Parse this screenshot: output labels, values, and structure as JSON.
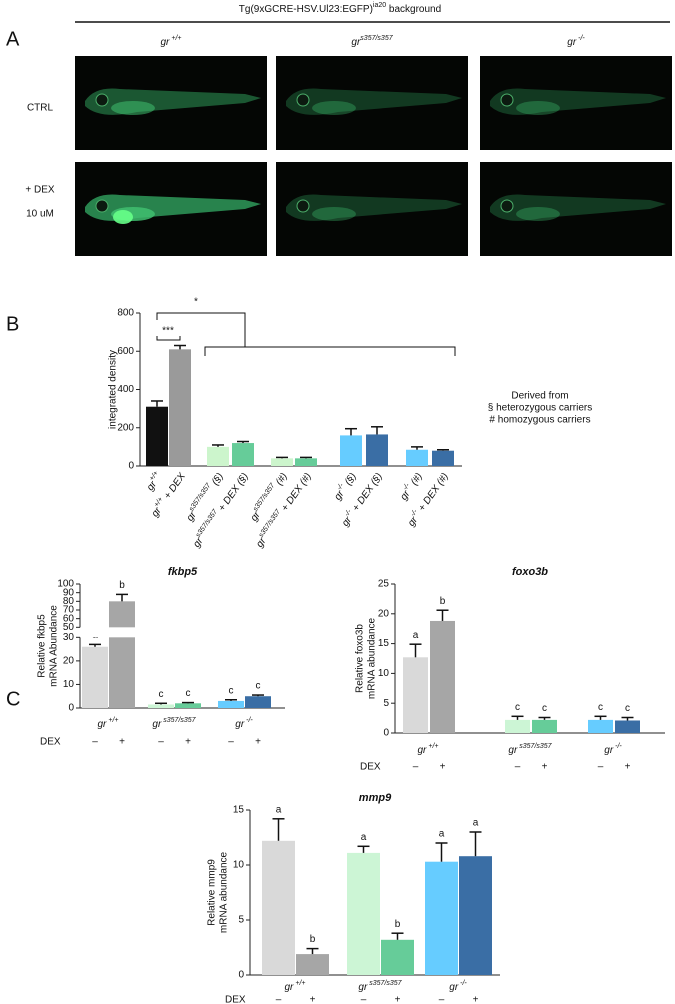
{
  "header": {
    "title": {
      "text": "Tg(9xGCRE-HSV.Ul23:EGFP)",
      "sup": "ia20",
      "rest": " background"
    }
  },
  "panel_a": {
    "letter": "A",
    "columns": [
      {
        "text": "gr",
        "sup": " +/+"
      },
      {
        "text": "gr",
        "sup": "s357/s357"
      },
      {
        "text": "gr",
        "sup": " -/-"
      }
    ],
    "rows": [
      "CTRL",
      "+ DEX",
      "10 uM"
    ]
  },
  "chart_data": [
    {
      "type": "bar",
      "panel": "B",
      "ylabel": "integrated density",
      "categories": [
        {
          "text": "gr",
          "sup": "+/+"
        },
        {
          "text": "gr",
          "sup": "+/+",
          "rest": " + DEX"
        },
        {
          "text": "gr",
          "sup": "s357/s357",
          "rest": " (§)"
        },
        {
          "text": "gr",
          "sup": "s357/s357",
          "rest": " + DEX (§)"
        },
        {
          "text": "gr",
          "sup": "s357/s357",
          "rest": " (#)"
        },
        {
          "text": "gr",
          "sup": "s357/s357",
          "rest": " + DEX (#)"
        },
        {
          "text": "gr",
          "sup": "-/-",
          "rest": " (§)"
        },
        {
          "text": "gr",
          "sup": "-/-",
          "rest": " + DEX (§)"
        },
        {
          "text": "gr",
          "sup": "-/-",
          "rest": " (#)"
        },
        {
          "text": "gr",
          "sup": "-/-",
          "rest": " + DEX (#)"
        }
      ],
      "values": [
        310,
        610,
        100,
        120,
        40,
        40,
        160,
        165,
        85,
        80
      ],
      "errors": [
        30,
        20,
        10,
        8,
        5,
        5,
        35,
        40,
        15,
        5
      ],
      "colors": [
        "#111111",
        "#9a9a9a",
        "#ccf5cc",
        "#66cc99",
        "#ccf5cc",
        "#66cc99",
        "#66ccff",
        "#3a6ea5",
        "#66ccff",
        "#3a6ea5"
      ],
      "ylim": [
        0,
        800
      ],
      "yticks": [
        0,
        200,
        400,
        600,
        800
      ],
      "significance": [
        "***",
        "*"
      ],
      "note": [
        "Derived from",
        "§ heterozygous carriers",
        "# homozygous carriers"
      ]
    },
    {
      "type": "bar",
      "panel": "C",
      "title": "fkbp5",
      "ylabel": [
        "Relative fkbp5",
        "mRNA Abundance"
      ],
      "groups": [
        {
          "text": "gr",
          "sup": " +/+"
        },
        {
          "text": "gr",
          "sup": " s357/s357"
        },
        {
          "text": "gr",
          "sup": " -/-"
        }
      ],
      "dex_label": "DEX",
      "dex": [
        "–",
        "+",
        "–",
        "+",
        "–",
        "+"
      ],
      "values": [
        26,
        80,
        1.5,
        2,
        3,
        5
      ],
      "errors": [
        1,
        8,
        0.5,
        0.3,
        0.5,
        0.5
      ],
      "annotations": [
        "a",
        "b",
        "c",
        "c",
        "c",
        "c"
      ],
      "colors": [
        "#d9d9d9",
        "#a6a6a6",
        "#ccf5d5",
        "#66cc99",
        "#66ccff",
        "#3a6ea5"
      ],
      "ylim": [
        0,
        100
      ],
      "ybreak": [
        30,
        50
      ],
      "yticks": [
        0,
        10,
        20,
        30,
        50,
        60,
        70,
        80,
        90,
        100
      ]
    },
    {
      "type": "bar",
      "title": "foxo3b",
      "ylabel": [
        "Relative foxo3b",
        "mRNA abundance"
      ],
      "groups": [
        {
          "text": "gr",
          "sup": " +/+"
        },
        {
          "text": "gr",
          "sup": " s357/s357"
        },
        {
          "text": "gr",
          "sup": " -/-"
        }
      ],
      "dex_label": "DEX",
      "dex": [
        "–",
        "+",
        "–",
        "+",
        "–",
        "+"
      ],
      "values": [
        12.7,
        18.8,
        2.2,
        2.2,
        2.2,
        2.1
      ],
      "errors": [
        2.2,
        1.8,
        0.6,
        0.4,
        0.6,
        0.5
      ],
      "annotations": [
        "a",
        "b",
        "c",
        "c",
        "c",
        "c"
      ],
      "colors": [
        "#d9d9d9",
        "#a6a6a6",
        "#ccf5d5",
        "#66cc99",
        "#66ccff",
        "#3a6ea5"
      ],
      "ylim": [
        0,
        25
      ],
      "yticks": [
        0,
        5,
        10,
        15,
        20,
        25
      ]
    },
    {
      "type": "bar",
      "title": "mmp9",
      "ylabel": [
        "Relative mmp9",
        "mRNA abundance"
      ],
      "groups": [
        {
          "text": "gr",
          "sup": " +/+"
        },
        {
          "text": "gr",
          "sup": " s357/s357"
        },
        {
          "text": "gr",
          "sup": " -/-"
        }
      ],
      "dex_label": "DEX",
      "dex": [
        "–",
        "+",
        "–",
        "+",
        "–",
        "+"
      ],
      "values": [
        12.2,
        1.9,
        11.1,
        3.2,
        10.3,
        10.8
      ],
      "errors": [
        2,
        0.5,
        0.6,
        0.6,
        1.7,
        2.2
      ],
      "annotations": [
        "a",
        "b",
        "a",
        "b",
        "a",
        "a"
      ],
      "colors": [
        "#d9d9d9",
        "#a6a6a6",
        "#ccf5d5",
        "#66cc99",
        "#66ccff",
        "#3a6ea5"
      ],
      "ylim": [
        0,
        15
      ],
      "yticks": [
        0,
        5,
        10,
        15
      ]
    }
  ]
}
